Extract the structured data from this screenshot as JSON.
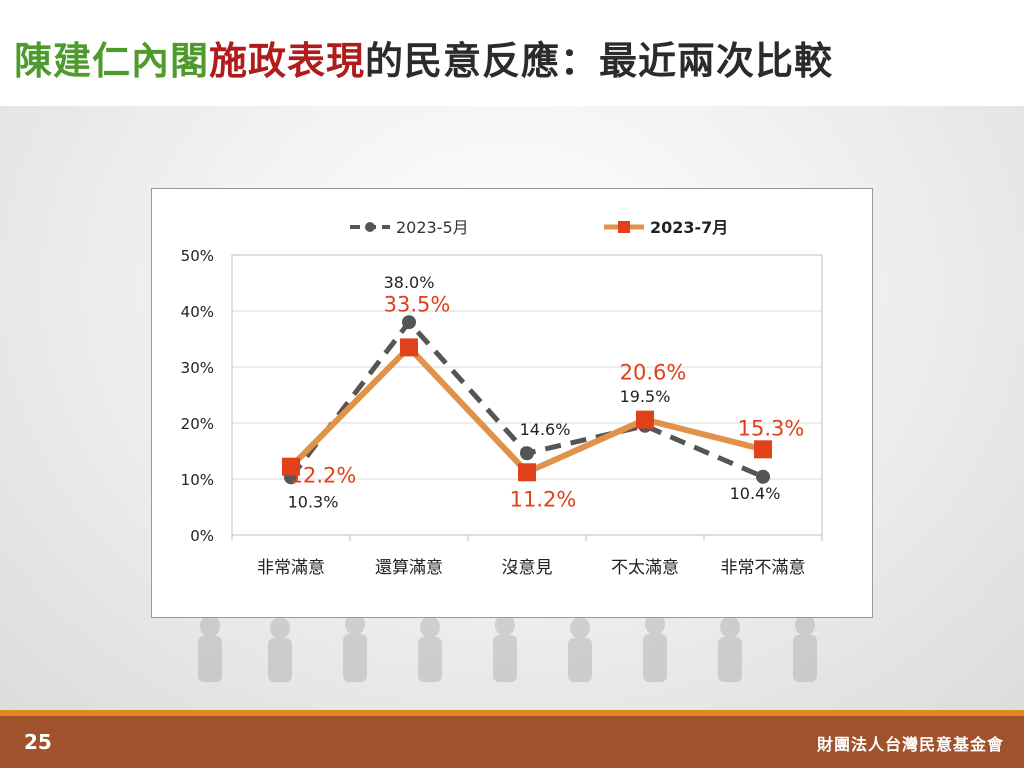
{
  "header": {
    "title_part1": "陳建仁內閣",
    "title_part2": "施政表現",
    "title_part3": "的民意反應：最近兩次比較"
  },
  "footer": {
    "page_number": "25",
    "organization": "財團法人台灣民意基金會"
  },
  "colors": {
    "title_green": "#4f9a2c",
    "title_red": "#b01c1c",
    "footer_brown": "#a0522d",
    "footer_orange_line": "#e08a1e",
    "series_may": "#555555",
    "series_july_line": "#e0914a",
    "series_july_marker": "#e0401a",
    "series_july_label": "#e0401a"
  },
  "chart_data": {
    "type": "line",
    "categories": [
      "非常滿意",
      "還算滿意",
      "沒意見",
      "不太滿意",
      "非常不滿意"
    ],
    "series": [
      {
        "name": "2023-5月",
        "values": [
          10.3,
          38.0,
          14.6,
          19.5,
          10.4
        ],
        "labels": [
          "10.3%",
          "38.0%",
          "14.6%",
          "19.5%",
          "10.4%"
        ],
        "style": "dashed",
        "marker": "circle"
      },
      {
        "name": "2023-7月",
        "values": [
          12.2,
          33.5,
          11.2,
          20.6,
          15.3
        ],
        "labels": [
          "12.2%",
          "33.5%",
          "11.2%",
          "20.6%",
          "15.3%"
        ],
        "style": "solid",
        "marker": "square"
      }
    ],
    "ylim": [
      0,
      50
    ],
    "yticks": [
      "0%",
      "10%",
      "20%",
      "30%",
      "40%",
      "50%"
    ],
    "grid": true,
    "legend": "top-center"
  }
}
